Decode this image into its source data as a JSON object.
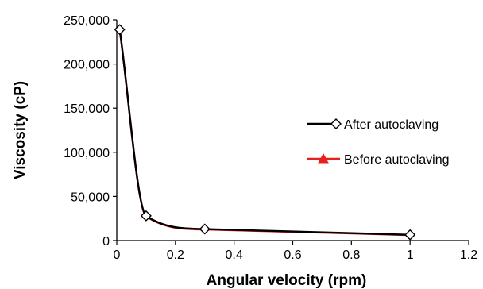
{
  "chart_data": {
    "type": "line",
    "title": "",
    "xlabel": "Angular velocity (rpm)",
    "ylabel": "Viscosity (cP)",
    "xlim": [
      0,
      1.2
    ],
    "ylim": [
      0,
      250000
    ],
    "x_ticks": [
      0,
      0.2,
      0.4,
      0.6,
      0.8,
      1,
      1.2
    ],
    "x_tick_labels": [
      "0",
      "0.2",
      "0.4",
      "0.6",
      "0.8",
      "1",
      "1.2"
    ],
    "y_ticks": [
      0,
      50000,
      100000,
      150000,
      200000,
      250000
    ],
    "y_tick_labels": [
      "0",
      "50,000",
      "100,000",
      "150,000",
      "200,000",
      "250,000"
    ],
    "grid": false,
    "legend_position": "right",
    "series": [
      {
        "name": "After autoclaving",
        "color": "#000000",
        "marker": "diamond-open",
        "x": [
          0.01,
          0.1,
          0.3,
          1
        ],
        "y": [
          239000,
          28000,
          13000,
          6500
        ]
      },
      {
        "name": "Before autoclaving",
        "color": "#e8201c",
        "marker": "triangle",
        "x": [
          0.01,
          0.1,
          0.3,
          1
        ],
        "y": [
          238500,
          27500,
          12500,
          6200
        ]
      }
    ]
  }
}
